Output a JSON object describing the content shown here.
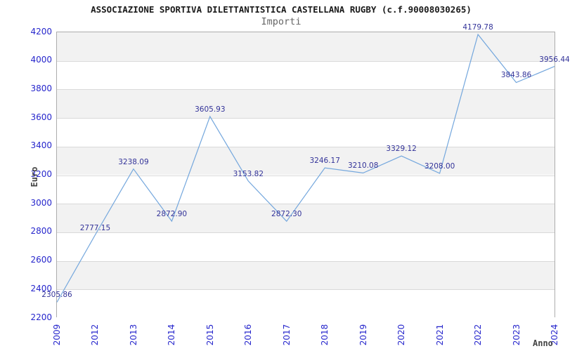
{
  "title": "ASSOCIAZIONE SPORTIVA DILETTANTISTICA CASTELLANA RUGBY (c.f.90008030265)",
  "subtitle": "Importi",
  "chart_data": {
    "type": "line",
    "categories": [
      "2009",
      "2012",
      "2013",
      "2014",
      "2015",
      "2016",
      "2017",
      "2018",
      "2019",
      "2020",
      "2021",
      "2022",
      "2023",
      "2024"
    ],
    "values": [
      2305.86,
      2777.15,
      3238.09,
      2872.9,
      3605.93,
      3153.82,
      2872.3,
      3246.17,
      3210.08,
      3329.12,
      3208.0,
      4179.78,
      3843.86,
      3956.44
    ],
    "point_labels": [
      "2305.86",
      "2777.15",
      "3238.09",
      "2872.90",
      "3605.93",
      "3153.82",
      "2872.30",
      "3246.17",
      "3210.08",
      "3329.12",
      "3208.00",
      "4179.78",
      "3843.86",
      "3956.44"
    ],
    "xlabel": "Anno",
    "ylabel": "Euro",
    "ylim": [
      2200,
      4200
    ],
    "ytick_step": 200,
    "yticks": [
      4200,
      4000,
      3800,
      3600,
      3400,
      3200,
      3000,
      2800,
      2600,
      2400,
      2200
    ],
    "grid": "horizontal",
    "legend": "none",
    "band_fill": "alternating gray/white from top, gray first",
    "colors": {
      "line": "#74a7dd",
      "point_label": "#333399",
      "tick_label": "#2626cc",
      "band_gray": "#f2f2f2",
      "gridline": "#d9d9d9",
      "plot_border": "#adadad",
      "title": "#1a1a1a",
      "subtitle": "#666666",
      "axis_title": "#444444"
    }
  }
}
